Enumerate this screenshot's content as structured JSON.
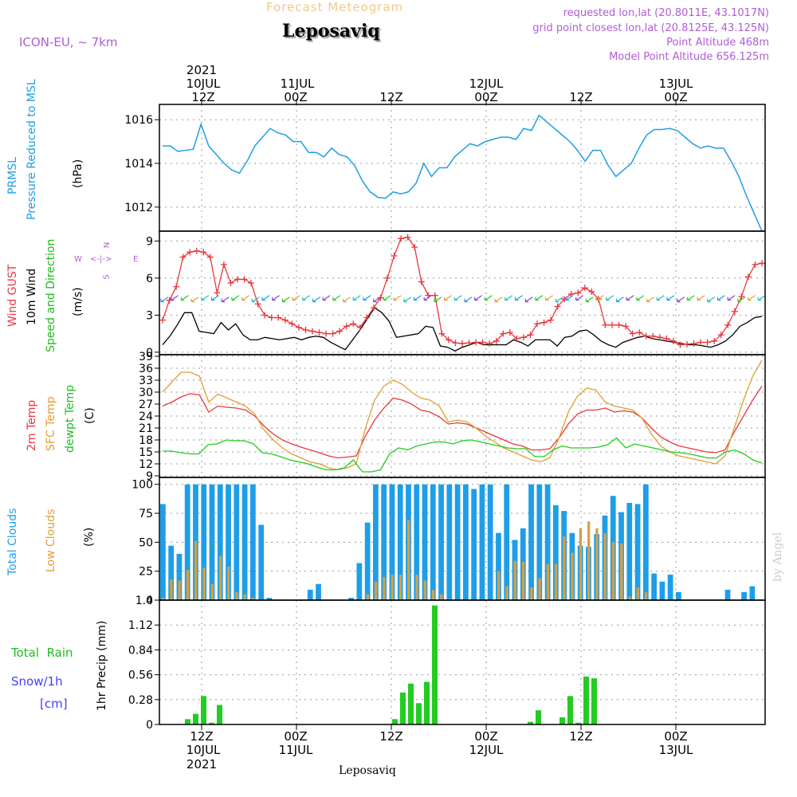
{
  "header": {
    "model": "ICON-EU, ~ 7km",
    "product": "Forecast Meteogram",
    "location": "Leposaviq",
    "requested": "requested lon,lat (20.8011E, 43.1017N)",
    "grid_point": "grid point closest lon,lat (20.8125E, 43.125N)",
    "point_altitude": "Point Altitude 468m",
    "model_altitude": "Model Point Altitude 656.125m"
  },
  "time_axis": {
    "top": {
      "year": "2021",
      "d1": "10JUL",
      "d2": "11JUL",
      "d3": "12JUL",
      "d4": "13JUL",
      "z12": "12Z",
      "z00": "00Z"
    },
    "bottom": {
      "year": "2021",
      "d1": "10JUL",
      "d2": "11JUL",
      "d3": "12JUL",
      "d4": "13JUL",
      "z12": "12Z",
      "z00": "00Z"
    }
  },
  "labels": {
    "prmsl": "PRMSL",
    "pressure": "Pressure Reduced to MSL",
    "hpa": "(hPa)",
    "gust": "Wind GUST",
    "wind10": "10m Wind",
    "speed_dir": "Speed and Direction",
    "ms": "(m/s)",
    "compass_w": "W",
    "compass_e": "E",
    "compass_n": "N",
    "compass_s": "S",
    "compass_arrows": "<-|->",
    "temp2m": "2m Temp",
    "sfc": "SFC Temp",
    "dewpt": "dewpt Temp",
    "cunit": "(C)",
    "total_clouds": "Total Clouds",
    "low_clouds": "Low Clouds",
    "pct": "(%)",
    "total_rain": "Total  Rain",
    "snow": "Snow/1h",
    "cm": "[cm]",
    "precip": "1hr Precip (mm)",
    "footer": "Leposaviq",
    "signature": "by Angel"
  },
  "colors": {
    "pressure": "#1e9ee8",
    "gust": "#e8383d",
    "wind": "#000000",
    "arrow": "#22cc22",
    "t2m": "#e8383d",
    "sfc": "#e0a030",
    "dew": "#22cc22",
    "total_clouds": "#1e9ee8",
    "low_clouds": "#d8a040",
    "precip": "#22cc22",
    "label_purple": "#b05cd6",
    "snow_label": "#4040ff"
  },
  "chart_data": [
    {
      "type": "line",
      "title": "PRMSL Pressure Reduced to MSL",
      "ylabel": "(hPa)",
      "ylim": [
        1010.9,
        1016.7
      ],
      "yticks": [
        1012,
        1014,
        1016
      ],
      "grid": true,
      "series": [
        {
          "values": [
            1014.8,
            1014.8,
            1014.55,
            1014.6,
            1014.65,
            1015.8,
            1014.8,
            1014.4,
            1014.0,
            1013.7,
            1013.55,
            1014.1,
            1014.8,
            1015.2,
            1015.6,
            1015.4,
            1015.3,
            1015.0,
            1015.0,
            1014.5,
            1014.5,
            1014.3,
            1014.7,
            1014.4,
            1014.3,
            1013.9,
            1013.2,
            1012.7,
            1012.45,
            1012.4,
            1012.7,
            1012.6,
            1012.7,
            1013.1,
            1014.0,
            1013.4,
            1013.8,
            1013.8,
            1014.3,
            1014.6,
            1014.9,
            1014.8,
            1015.0,
            1015.1,
            1015.2,
            1015.2,
            1015.1,
            1015.6,
            1015.5,
            1016.2,
            1015.9,
            1015.6,
            1015.3,
            1015.0,
            1014.6,
            1014.1,
            1014.6,
            1014.6,
            1013.9,
            1013.4,
            1013.7,
            1014.0,
            1014.7,
            1015.3,
            1015.55,
            1015.55,
            1015.6,
            1015.5,
            1015.2,
            1014.9,
            1014.7,
            1014.8,
            1014.7,
            1014.7,
            1014.1,
            1013.4,
            1012.5,
            1011.7,
            1010.9
          ]
        }
      ]
    },
    {
      "type": "line",
      "title": "Wind GUST / 10m Wind Speed and Direction",
      "ylabel": "(m/s)",
      "ylim": [
        -0.2,
        9.8
      ],
      "yticks": [
        0,
        3,
        6,
        9
      ],
      "grid": true,
      "series": [
        {
          "name": "Wind GUST",
          "values": [
            2.6,
            4.2,
            5.3,
            7.7,
            8.1,
            8.2,
            8.1,
            7.7,
            4.8,
            7.1,
            5.6,
            5.9,
            5.9,
            5.6,
            3.9,
            3.0,
            2.8,
            2.8,
            2.6,
            2.3,
            2.0,
            1.8,
            1.7,
            1.6,
            1.5,
            1.5,
            1.7,
            2.1,
            2.3,
            2.0,
            2.8,
            3.6,
            4.4,
            6.0,
            7.8,
            9.2,
            9.3,
            8.5,
            5.7,
            4.6,
            4.6,
            1.5,
            1.0,
            0.75,
            0.7,
            0.75,
            0.8,
            0.8,
            0.7,
            0.9,
            1.5,
            1.6,
            1.1,
            1.2,
            1.4,
            2.3,
            2.4,
            2.6,
            3.7,
            4.3,
            4.7,
            4.8,
            5.2,
            4.9,
            4.3,
            2.2,
            2.2,
            2.2,
            2.1,
            1.5,
            1.6,
            1.3,
            1.3,
            1.2,
            1.1,
            0.9,
            0.6,
            0.65,
            0.7,
            0.8,
            0.8,
            0.9,
            1.4,
            2.2,
            3.3,
            4.5,
            6.1,
            7.1,
            7.2
          ]
        },
        {
          "name": "10m Wind",
          "values": [
            0.6,
            1.3,
            2.2,
            3.2,
            3.2,
            1.7,
            1.6,
            1.5,
            2.4,
            1.8,
            2.3,
            1.4,
            1.0,
            1.0,
            1.2,
            1.1,
            1.0,
            1.1,
            1.2,
            1.0,
            1.2,
            1.3,
            1.2,
            0.8,
            0.5,
            0.2,
            1.0,
            1.8,
            2.7,
            3.6,
            3.2,
            2.5,
            1.2,
            1.3,
            1.4,
            1.5,
            2.1,
            2.0,
            0.5,
            0.4,
            0.1,
            0.4,
            0.6,
            0.8,
            0.6,
            0.6,
            0.6,
            0.6,
            1.0,
            0.8,
            0.5,
            1.0,
            1.0,
            1.0,
            0.5,
            1.2,
            1.3,
            1.7,
            1.8,
            1.4,
            0.9,
            0.6,
            0.4,
            0.8,
            1.0,
            1.2,
            1.3,
            1.1,
            1.0,
            0.9,
            0.8,
            0.7,
            0.6,
            0.6,
            0.5,
            0.4,
            0.6,
            0.9,
            1.4,
            2.1,
            2.4,
            2.8,
            2.9
          ]
        }
      ]
    },
    {
      "type": "line",
      "title": "2m Temp / SFC Temp / dewpt Temp",
      "ylabel": "(C)",
      "ylim": [
        8.6,
        39.4
      ],
      "yticks": [
        9,
        12,
        15,
        18,
        21,
        24,
        27,
        30,
        33,
        36,
        39
      ],
      "grid": true,
      "series": [
        {
          "name": "2m Temp",
          "values": [
            26.5,
            27.5,
            28.8,
            29.6,
            29.3,
            25.0,
            26.5,
            26.2,
            26.0,
            25.5,
            24.0,
            21.5,
            19.5,
            18.0,
            17.0,
            16.2,
            15.5,
            14.8,
            14.0,
            13.5,
            13.7,
            14.0,
            19.0,
            23.0,
            26.0,
            28.5,
            28.0,
            27.0,
            25.5,
            25.0,
            23.8,
            22.0,
            22.3,
            22.0,
            21.0,
            20.0,
            19.0,
            18.0,
            17.0,
            16.5,
            15.5,
            15.5,
            15.8,
            18.5,
            22.0,
            24.5,
            25.5,
            25.5,
            26.0,
            25.0,
            25.3,
            25.0,
            23.5,
            21.0,
            18.8,
            17.5,
            16.5,
            16.0,
            15.5,
            15.0,
            14.8,
            15.5,
            20.0,
            24.0,
            28.0,
            31.5
          ]
        },
        {
          "name": "SFC Temp",
          "values": [
            30.0,
            32.5,
            35.0,
            35.0,
            34.0,
            27.5,
            29.5,
            28.5,
            27.5,
            26.5,
            24.5,
            20.5,
            18.0,
            16.0,
            14.5,
            13.5,
            12.5,
            12.0,
            11.0,
            10.5,
            11.0,
            12.0,
            21.0,
            28.0,
            31.5,
            33.0,
            32.0,
            30.0,
            28.5,
            28.0,
            26.5,
            22.5,
            23.0,
            22.5,
            21.0,
            19.0,
            17.5,
            16.0,
            15.0,
            14.0,
            13.0,
            12.5,
            13.5,
            18.5,
            25.0,
            29.0,
            31.0,
            30.5,
            27.5,
            26.5,
            26.0,
            25.5,
            23.5,
            19.5,
            16.5,
            15.0,
            14.0,
            13.5,
            13.0,
            12.5,
            12.0,
            14.0,
            21.0,
            28.0,
            34.0,
            38.0
          ]
        },
        {
          "name": "dewpt Temp",
          "values": [
            15.2,
            15.2,
            14.8,
            14.5,
            14.5,
            16.8,
            17.0,
            18.0,
            17.8,
            17.8,
            17.0,
            14.8,
            14.5,
            13.8,
            13.0,
            12.5,
            12.0,
            11.2,
            10.5,
            10.5,
            11.0,
            13.0,
            10.0,
            10.0,
            10.5,
            14.5,
            16.0,
            15.5,
            16.5,
            17.0,
            17.5,
            17.5,
            17.0,
            17.8,
            18.0,
            17.5,
            17.0,
            16.5,
            16.0,
            15.8,
            15.8,
            13.8,
            13.8,
            15.5,
            16.5,
            16.0,
            16.0,
            16.0,
            16.2,
            16.8,
            18.5,
            16.0,
            17.0,
            16.5,
            16.0,
            15.5,
            15.0,
            14.8,
            14.5,
            14.0,
            13.5,
            13.5,
            15.0,
            15.5,
            14.5,
            13.0,
            12.2
          ]
        }
      ]
    },
    {
      "type": "bar",
      "title": "Total Clouds / Low Clouds",
      "ylabel": "(%)",
      "ylim": [
        0,
        106
      ],
      "yticks": [
        0,
        25,
        50,
        75,
        100
      ],
      "grid": true,
      "series": [
        {
          "name": "Total Clouds",
          "values": [
            83,
            47,
            40,
            100,
            100,
            100,
            100,
            100,
            100,
            100,
            100,
            100,
            65,
            2,
            0,
            0,
            0,
            0,
            9,
            14,
            0,
            0,
            0,
            2,
            32,
            67,
            100,
            100,
            100,
            100,
            100,
            100,
            100,
            100,
            100,
            100,
            100,
            100,
            96,
            100,
            100,
            58,
            100,
            52,
            62,
            100,
            100,
            100,
            82,
            77,
            58,
            47,
            46,
            57,
            73,
            90,
            76,
            84,
            83,
            100,
            23,
            16,
            22,
            7,
            0,
            0,
            0,
            0,
            0,
            9,
            0,
            7,
            12,
            0
          ]
        },
        {
          "name": "Low Clouds",
          "values": [
            2,
            18,
            17,
            26,
            51,
            28,
            14,
            38,
            29,
            7,
            5,
            2,
            0,
            0,
            0,
            0,
            0,
            0,
            0,
            0,
            0,
            0,
            0,
            0,
            0,
            5,
            16,
            20,
            22,
            22,
            69,
            22,
            17,
            9,
            5,
            1,
            0,
            0,
            0,
            0,
            0,
            25,
            12,
            34,
            33,
            11,
            19,
            31,
            31,
            55,
            41,
            62,
            68,
            62,
            58,
            50,
            49,
            3,
            11,
            7,
            0,
            0,
            0,
            0,
            0,
            0,
            0,
            0,
            0,
            0,
            0,
            0,
            0,
            0
          ]
        }
      ]
    },
    {
      "type": "bar",
      "title": "Total Rain / Snow/1h",
      "ylabel": "1hr Precip (mm)",
      "ylim": [
        0,
        1.4
      ],
      "yticks": [
        0,
        0.28,
        0.56,
        0.84,
        1.12,
        1.4
      ],
      "grid": true,
      "series": [
        {
          "name": "Total Rain",
          "values": [
            0,
            0,
            0,
            0.06,
            0.12,
            0.32,
            0.02,
            0.22,
            0,
            0,
            0,
            0,
            0,
            0,
            0,
            0,
            0,
            0,
            0,
            0,
            0,
            0,
            0,
            0,
            0,
            0,
            0,
            0,
            0,
            0.06,
            0.36,
            0.46,
            0.24,
            0.48,
            1.34,
            0,
            0,
            0,
            0,
            0,
            0,
            0,
            0,
            0,
            0,
            0,
            0.03,
            0.16,
            0,
            0,
            0.08,
            0.32,
            0.02,
            0.54,
            0.52,
            0,
            0,
            0,
            0,
            0,
            0,
            0,
            0,
            0,
            0,
            0,
            0,
            0,
            0,
            0,
            0,
            0,
            0,
            0,
            0,
            0
          ]
        }
      ]
    }
  ]
}
